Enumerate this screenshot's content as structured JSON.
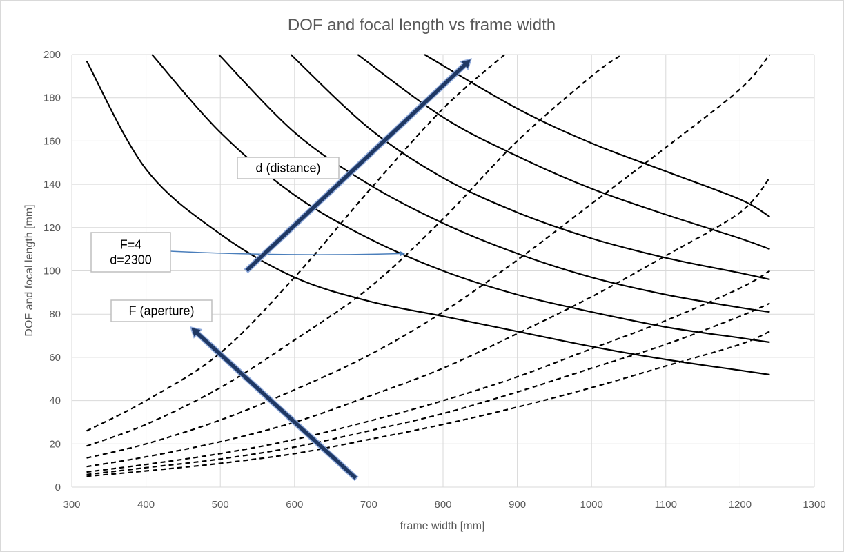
{
  "chart_data": {
    "type": "line",
    "title": "DOF and focal length vs frame width",
    "xlabel": "frame width [mm]",
    "ylabel": "DOF and focal length [mm]",
    "xlim": [
      300,
      1300
    ],
    "ylim": [
      0,
      200
    ],
    "x_ticks": [
      300,
      400,
      500,
      600,
      700,
      800,
      900,
      1000,
      1100,
      1200,
      1300
    ],
    "y_ticks": [
      0,
      20,
      40,
      60,
      80,
      100,
      120,
      140,
      160,
      180,
      200
    ],
    "grid": true,
    "legend": "none",
    "colors": {
      "series": "#000000",
      "grid": "#d9d9d9",
      "arrow_fill": "#1f3864",
      "arrow_edge": "#8faadc",
      "callout_arrow": "#4a7ebb",
      "text": "#595959"
    },
    "series": [
      {
        "style": "solid",
        "x": [
          320,
          400,
          500,
          600,
          700,
          800,
          900,
          1000,
          1100,
          1200,
          1240
        ],
        "values": [
          197,
          147,
          117,
          97,
          86,
          79,
          72,
          65,
          59,
          54,
          52
        ]
      },
      {
        "style": "solid",
        "x": [
          408,
          500,
          600,
          700,
          800,
          900,
          1000,
          1100,
          1200,
          1240
        ],
        "values": [
          200,
          164,
          135,
          115,
          100,
          89,
          81,
          74,
          69,
          67
        ]
      },
      {
        "style": "solid",
        "x": [
          498,
          600,
          700,
          800,
          900,
          1000,
          1100,
          1200,
          1240
        ],
        "values": [
          200,
          164,
          140,
          122,
          108,
          97,
          89,
          83,
          81
        ]
      },
      {
        "style": "solid",
        "x": [
          595,
          700,
          800,
          900,
          1000,
          1100,
          1200,
          1240
        ],
        "values": [
          200,
          166,
          143,
          127,
          115,
          106,
          99,
          96
        ]
      },
      {
        "style": "solid",
        "x": [
          685,
          800,
          900,
          1000,
          1100,
          1200,
          1240
        ],
        "values": [
          200,
          171,
          153,
          138,
          126,
          115,
          110
        ]
      },
      {
        "style": "solid",
        "x": [
          775,
          900,
          1000,
          1100,
          1200,
          1240
        ],
        "values": [
          200,
          175,
          159,
          146,
          133,
          125
        ]
      },
      {
        "style": "dashed",
        "x": [
          320,
          400,
          500,
          600,
          700,
          800,
          883
        ],
        "values": [
          26,
          40,
          62,
          97,
          137,
          175,
          200
        ]
      },
      {
        "style": "dashed",
        "x": [
          320,
          400,
          500,
          600,
          700,
          800,
          900,
          1000,
          1041
        ],
        "values": [
          19,
          29,
          46,
          68,
          92,
          124,
          160,
          190,
          200
        ]
      },
      {
        "style": "dashed",
        "x": [
          320,
          400,
          500,
          600,
          700,
          800,
          900,
          1000,
          1100,
          1200,
          1240
        ],
        "values": [
          13.5,
          20,
          31,
          45,
          61,
          81,
          105,
          131,
          157,
          184,
          200
        ]
      },
      {
        "style": "dashed",
        "x": [
          320,
          400,
          500,
          600,
          700,
          800,
          900,
          1000,
          1100,
          1200,
          1240
        ],
        "values": [
          9.5,
          14,
          21,
          30,
          42,
          55,
          71,
          88,
          107,
          127,
          143
        ]
      },
      {
        "style": "dashed",
        "x": [
          320,
          400,
          500,
          600,
          700,
          800,
          900,
          1000,
          1100,
          1200,
          1240
        ],
        "values": [
          7,
          10.5,
          15.5,
          22,
          30.5,
          40,
          51,
          64,
          77,
          92,
          100
        ]
      },
      {
        "style": "dashed",
        "x": [
          320,
          400,
          500,
          600,
          700,
          800,
          900,
          1000,
          1100,
          1200,
          1240
        ],
        "values": [
          5.8,
          9,
          13,
          18.5,
          26,
          34,
          44,
          55,
          66,
          79,
          85
        ]
      },
      {
        "style": "dashed",
        "x": [
          320,
          400,
          500,
          600,
          700,
          800,
          900,
          1000,
          1100,
          1200,
          1240
        ],
        "values": [
          5,
          7.5,
          11,
          15.5,
          22,
          29,
          37,
          46,
          56,
          66,
          72
        ]
      }
    ],
    "annotations": [
      {
        "text": "d (distance)",
        "arrow": {
          "from": [
            535,
            100
          ],
          "to": [
            838,
            198
          ]
        }
      },
      {
        "text": "F=4\nd=2300",
        "callout_to": [
          748,
          108
        ]
      },
      {
        "text": "F (aperture)",
        "arrow": {
          "from": [
            683,
            4
          ],
          "to": [
            460,
            74
          ]
        }
      }
    ]
  }
}
